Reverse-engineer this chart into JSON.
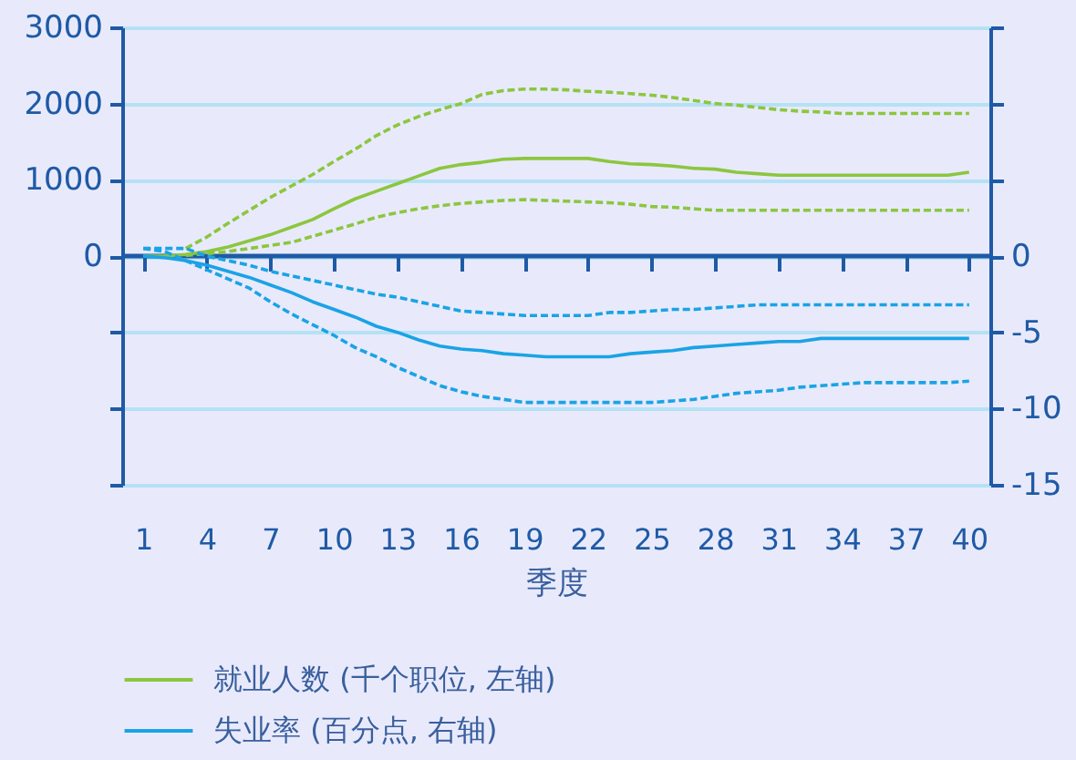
{
  "chart_data": {
    "type": "line",
    "xlabel": "季度",
    "legend": "bottom",
    "grid": "y",
    "x": [
      1,
      2,
      3,
      4,
      5,
      6,
      7,
      8,
      9,
      10,
      11,
      12,
      13,
      14,
      15,
      16,
      17,
      18,
      19,
      20,
      21,
      22,
      23,
      24,
      25,
      26,
      27,
      28,
      29,
      30,
      31,
      32,
      33,
      34,
      35,
      36,
      37,
      38,
      39,
      40
    ],
    "xlim": [
      0,
      41
    ],
    "xticks": [
      1,
      4,
      7,
      10,
      13,
      16,
      19,
      22,
      25,
      28,
      31,
      34,
      37,
      40
    ],
    "ref_lines": [
      {
        "axis": "y",
        "value": 0,
        "color": "#1f5aa6"
      }
    ],
    "ylim": [
      -3000,
      3000
    ],
    "yticks": [
      3000,
      2000,
      1000,
      0,
      {
        "value": -1000,
        "label": null
      },
      {
        "value": -2000,
        "label": null
      },
      {
        "value": -3000,
        "label": null
      }
    ],
    "y2lim": [
      -15,
      15
    ],
    "y2ticks": [
      {
        "value": 15,
        "label": null
      },
      {
        "value": 10,
        "label": null
      },
      {
        "value": 5,
        "label": null
      },
      0,
      -5,
      -10,
      -15
    ],
    "series": [
      {
        "name": "就业人数 (千个职位, 左轴)",
        "color": "#8cc63f",
        "line_style": "solid",
        "values": [
          0,
          0,
          20,
          60,
          120,
          200,
          280,
          380,
          480,
          620,
          750,
          850,
          950,
          1050,
          1150,
          1200,
          1230,
          1270,
          1280,
          1280,
          1280,
          1280,
          1240,
          1210,
          1200,
          1180,
          1150,
          1140,
          1100,
          1080,
          1060,
          1060,
          1060,
          1060,
          1060,
          1060,
          1060,
          1060,
          1060,
          1100
        ]
      },
      {
        "color": "#8cc63f",
        "line_style": "dashed",
        "values": [
          null,
          null,
          100,
          250,
          430,
          600,
          770,
          920,
          1070,
          1240,
          1400,
          1580,
          1720,
          1830,
          1920,
          2000,
          2120,
          2170,
          2190,
          2190,
          2180,
          2160,
          2150,
          2130,
          2110,
          2080,
          2040,
          2000,
          1980,
          1950,
          1920,
          1900,
          1890,
          1870,
          1870,
          1870,
          1870,
          1870,
          1870,
          1870
        ]
      },
      {
        "color": "#8cc63f",
        "line_style": "dashed",
        "values": [
          null,
          null,
          10,
          30,
          60,
          100,
          140,
          180,
          260,
          340,
          420,
          510,
          570,
          620,
          660,
          690,
          710,
          730,
          740,
          730,
          720,
          710,
          700,
          680,
          650,
          640,
          620,
          600,
          600,
          600,
          600,
          600,
          600,
          600,
          600,
          600,
          600,
          600,
          600,
          600
        ]
      },
      {
        "name": "失业率 (百分点, 右轴)",
        "color": "#1aa3e6",
        "axis": "y2",
        "line_style": "solid",
        "values": [
          0,
          -0.1,
          -0.3,
          -0.6,
          -1.0,
          -1.4,
          -1.9,
          -2.4,
          -3.0,
          -3.5,
          -4.0,
          -4.6,
          -5.0,
          -5.5,
          -5.9,
          -6.1,
          -6.2,
          -6.4,
          -6.5,
          -6.6,
          -6.6,
          -6.6,
          -6.6,
          -6.4,
          -6.3,
          -6.2,
          -6.0,
          -5.9,
          -5.8,
          -5.7,
          -5.6,
          -5.6,
          -5.4,
          -5.4,
          -5.4,
          -5.4,
          -5.4,
          -5.4,
          -5.4,
          -5.4
        ]
      },
      {
        "color": "#1aa3e6",
        "axis": "y2",
        "line_style": "dashed",
        "values": [
          0.5,
          0.5,
          0.5,
          0,
          -0.3,
          -0.6,
          -1.0,
          -1.3,
          -1.6,
          -1.9,
          -2.2,
          -2.5,
          -2.7,
          -3.0,
          -3.3,
          -3.6,
          -3.7,
          -3.8,
          -3.9,
          -3.9,
          -3.9,
          -3.9,
          -3.7,
          -3.7,
          -3.6,
          -3.5,
          -3.5,
          -3.4,
          -3.3,
          -3.2,
          -3.2,
          -3.2,
          -3.2,
          -3.2,
          -3.2,
          -3.2,
          -3.2,
          -3.2,
          -3.2,
          -3.2
        ]
      },
      {
        "color": "#1aa3e6",
        "axis": "y2",
        "line_style": "dashed",
        "values": [
          0.5,
          0.3,
          -0.3,
          -0.9,
          -1.5,
          -2.1,
          -3.0,
          -3.8,
          -4.5,
          -5.2,
          -6.0,
          -6.6,
          -7.3,
          -7.9,
          -8.5,
          -8.9,
          -9.2,
          -9.4,
          -9.6,
          -9.6,
          -9.6,
          -9.6,
          -9.6,
          -9.6,
          -9.6,
          -9.5,
          -9.4,
          -9.2,
          -9.0,
          -8.9,
          -8.8,
          -8.6,
          -8.5,
          -8.4,
          -8.3,
          -8.3,
          -8.3,
          -8.3,
          -8.3,
          -8.2
        ]
      }
    ]
  }
}
